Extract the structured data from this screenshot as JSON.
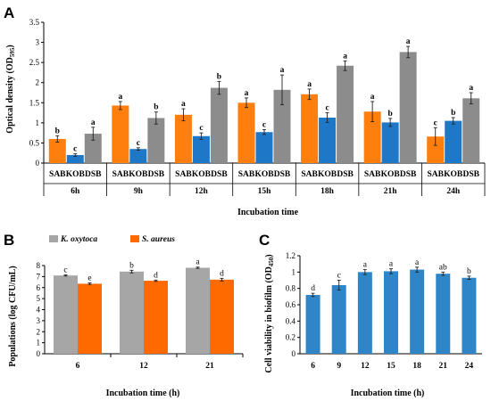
{
  "chart_data": [
    {
      "panel": "A",
      "type": "bar",
      "ylabel": "Optical density (OD595)",
      "ylabel_main": "Optical density (OD",
      "ylabel_sub": "595",
      "ylabel_close": ")",
      "xlabel": "Incubation time",
      "ylim": [
        0,
        3.5
      ],
      "yticks": [
        "0",
        "0.5",
        "1",
        "1.5",
        "2",
        "2.5",
        "3",
        "3.5"
      ],
      "groups": [
        "6h",
        "9h",
        "12h",
        "15h",
        "18h",
        "21h",
        "24h"
      ],
      "bar_labels": [
        "SAB",
        "KOB",
        "DSB"
      ],
      "colors": {
        "SAB": "#ff7f0e",
        "KOB": "#1f77c8",
        "DSB": "#8c8c8c"
      },
      "series": [
        {
          "key": "SAB",
          "values": [
            0.6,
            1.43,
            1.2,
            1.5,
            1.71,
            1.28,
            0.66
          ],
          "errors": [
            0.08,
            0.1,
            0.15,
            0.12,
            0.13,
            0.25,
            0.22
          ],
          "letters": [
            "b",
            "a",
            "a",
            "a",
            "a",
            "a",
            "c"
          ]
        },
        {
          "key": "KOB",
          "values": [
            0.2,
            0.35,
            0.67,
            0.77,
            1.13,
            1.01,
            1.05
          ],
          "errors": [
            0.03,
            0.03,
            0.08,
            0.06,
            0.12,
            0.1,
            0.08
          ],
          "letters": [
            "c",
            "c",
            "c",
            "c",
            "c",
            "b",
            "b"
          ]
        },
        {
          "key": "DSB",
          "values": [
            0.73,
            1.12,
            1.87,
            1.82,
            2.42,
            2.76,
            1.61
          ],
          "errors": [
            0.16,
            0.15,
            0.16,
            0.37,
            0.12,
            0.14,
            0.14
          ],
          "letters": [
            "a",
            "b",
            "b",
            "a",
            "a",
            "a",
            "a"
          ]
        }
      ]
    },
    {
      "panel": "B",
      "type": "bar",
      "ylabel": "Populations (log CFU/mL)",
      "xlabel": "Incubation time (h)",
      "ylim": [
        0,
        8
      ],
      "yticks": [
        "0",
        "1",
        "2",
        "3",
        "4",
        "5",
        "6",
        "7",
        "8"
      ],
      "categories": [
        "6",
        "12",
        "21"
      ],
      "legend": [
        "K. oxytoca",
        "S. aureus"
      ],
      "legend_placement": "top-left",
      "colors": {
        "K. oxytoca": "#a6a6a6",
        "S. aureus": "#ff6a00"
      },
      "series": [
        {
          "key": "K. oxytoca",
          "values": [
            7.1,
            7.45,
            7.8
          ],
          "errors": [
            0.05,
            0.12,
            0.06
          ],
          "letters": [
            "c",
            "b",
            "a"
          ]
        },
        {
          "key": "S. aureus",
          "values": [
            6.35,
            6.62,
            6.72
          ],
          "errors": [
            0.07,
            0.06,
            0.12
          ],
          "letters": [
            "e",
            "d",
            "d"
          ]
        }
      ]
    },
    {
      "panel": "C",
      "type": "bar",
      "ylabel": "Cell viability in biofilm (OD450)",
      "ylabel_main": "Cell viability in biofilm (OD",
      "ylabel_sub": "450",
      "ylabel_close": ")",
      "xlabel": "Incubation time (h)",
      "ylim": [
        0,
        1.2
      ],
      "yticks": [
        "0",
        "0.2",
        "0.4",
        "0.6",
        "0.8",
        "1",
        "1.2"
      ],
      "categories": [
        "6",
        "9",
        "12",
        "15",
        "18",
        "21",
        "24"
      ],
      "color": "#2e86c8",
      "series": [
        {
          "values": [
            0.72,
            0.84,
            1.0,
            1.01,
            1.03,
            0.98,
            0.93
          ],
          "errors": [
            0.02,
            0.06,
            0.03,
            0.03,
            0.03,
            0.02,
            0.02
          ],
          "letters": [
            "d",
            "c",
            "a",
            "a",
            "a",
            "ab",
            "b"
          ]
        }
      ]
    }
  ]
}
